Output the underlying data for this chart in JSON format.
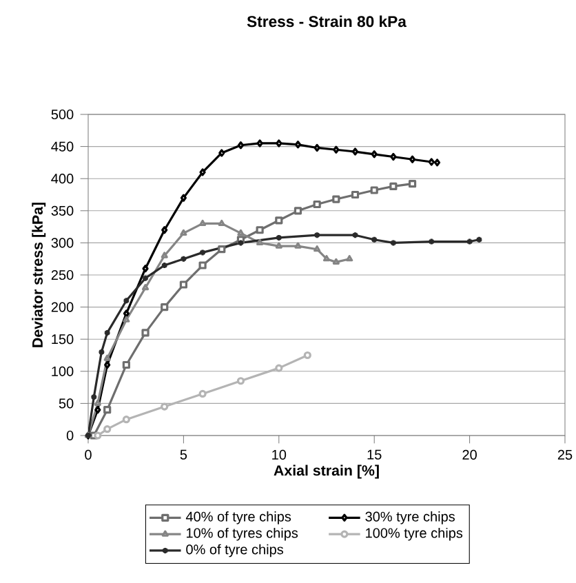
{
  "chart_data": {
    "type": "line",
    "title": "Stress - Strain 80 kPa",
    "xlabel": "Axial strain [%]",
    "ylabel": "Deviator stress [kPa]",
    "xlim": [
      0,
      25
    ],
    "xticks": [
      0,
      5,
      10,
      15,
      20,
      25
    ],
    "ylim": [
      0,
      500
    ],
    "yticks": [
      0,
      50,
      100,
      150,
      200,
      250,
      300,
      350,
      400,
      450,
      500
    ],
    "grid": "y",
    "legend": "bottom",
    "series": [
      {
        "name": "40% of tyre chips",
        "color": "#6e6e6e",
        "marker": "square",
        "x": [
          0.3,
          1,
          2,
          3,
          4,
          5,
          6,
          7,
          8,
          9,
          10,
          11,
          12,
          13,
          14,
          15,
          16,
          17
        ],
        "values": [
          0,
          40,
          110,
          160,
          200,
          235,
          265,
          290,
          305,
          320,
          335,
          350,
          360,
          368,
          375,
          382,
          388,
          392
        ]
      },
      {
        "name": "30% tyre chips",
        "color": "#000000",
        "marker": "diamond",
        "x": [
          0,
          0.5,
          1,
          2,
          3,
          4,
          5,
          6,
          7,
          8,
          9,
          10,
          11,
          12,
          13,
          14,
          15,
          16,
          17,
          18,
          18.3
        ],
        "values": [
          0,
          40,
          110,
          190,
          260,
          320,
          370,
          410,
          440,
          452,
          455,
          455,
          453,
          448,
          445,
          442,
          438,
          434,
          430,
          426,
          425
        ]
      },
      {
        "name": "10% of tyres chips",
        "color": "#858585",
        "marker": "triangle",
        "x": [
          0,
          0.5,
          1,
          2,
          3,
          4,
          5,
          6,
          7,
          8,
          9,
          10,
          11,
          12,
          12.5,
          13,
          13.7
        ],
        "values": [
          0,
          50,
          120,
          180,
          230,
          280,
          315,
          330,
          330,
          315,
          300,
          295,
          295,
          290,
          275,
          270,
          275
        ]
      },
      {
        "name": "100% tyre chips",
        "color": "#b4b4b4",
        "marker": "circle",
        "x": [
          0.5,
          1,
          2,
          4,
          6,
          8,
          10,
          11.5
        ],
        "values": [
          0,
          10,
          25,
          45,
          65,
          85,
          105,
          125
        ]
      },
      {
        "name": "0% of tyre chips",
        "color": "#2a2a2a",
        "marker": "cross",
        "x": [
          0,
          0.3,
          0.7,
          1,
          2,
          3,
          4,
          5,
          6,
          8,
          10,
          12,
          14,
          15,
          16,
          18,
          20,
          20.5
        ],
        "values": [
          0,
          60,
          130,
          160,
          210,
          245,
          265,
          275,
          285,
          300,
          308,
          312,
          312,
          305,
          300,
          302,
          302,
          305
        ]
      }
    ]
  }
}
